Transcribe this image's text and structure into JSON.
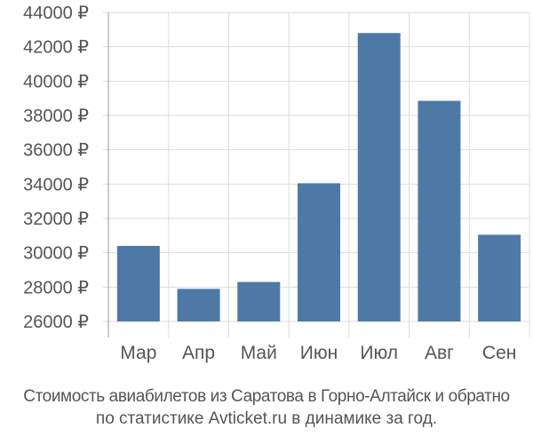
{
  "chart_data": {
    "type": "bar",
    "categories": [
      "Мар",
      "Апр",
      "Май",
      "Июн",
      "Июл",
      "Авг",
      "Сен"
    ],
    "values": [
      30400,
      27900,
      28300,
      34050,
      42800,
      38850,
      31050
    ],
    "ylim": [
      26000,
      44000
    ],
    "yticks": [
      26000,
      28000,
      30000,
      32000,
      34000,
      36000,
      38000,
      40000,
      42000,
      44000
    ],
    "ytick_labels": [
      "26000 ₽",
      "28000 ₽",
      "30000 ₽",
      "32000 ₽",
      "34000 ₽",
      "36000 ₽",
      "38000 ₽",
      "40000 ₽",
      "42000 ₽",
      "44000 ₽"
    ],
    "title": "",
    "xlabel": "",
    "ylabel": "",
    "grid": true,
    "colors": {
      "bar": "#4e79a7",
      "grid": "#dddddd",
      "axis": "#999999",
      "tick_text": "#555555"
    }
  },
  "caption": {
    "line1": "Стоимость авиабилетов из Саратова в Горно-Алтайск и обратно",
    "line2": "по статистике Avticket.ru в динамике за год."
  }
}
